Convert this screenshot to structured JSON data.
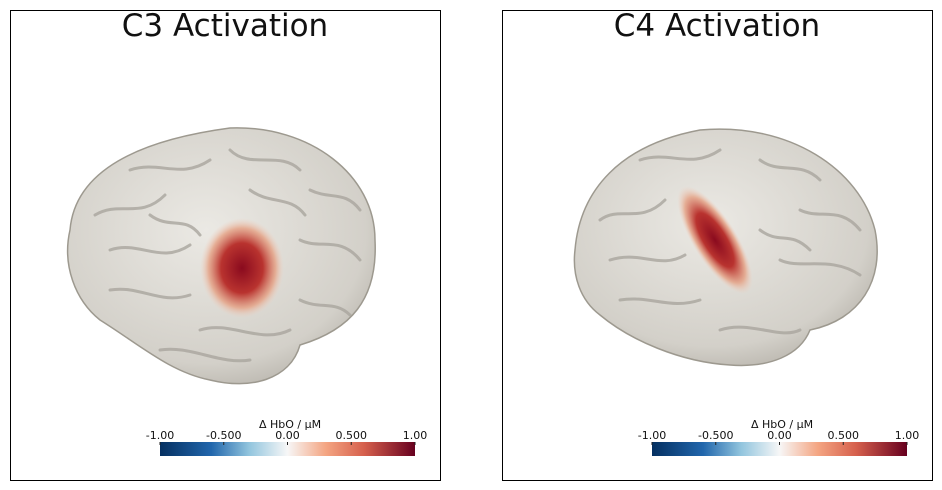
{
  "panels": [
    {
      "title": "C3 Activation",
      "colorbar": {
        "label": "Δ HbO / μM",
        "range": [
          -1,
          1
        ],
        "ticks": [
          {
            "value": -1,
            "label": "-1.00"
          },
          {
            "value": -0.5,
            "label": "-0.500"
          },
          {
            "value": 0,
            "label": "0.00"
          },
          {
            "value": 0.5,
            "label": "0.500"
          },
          {
            "value": 1,
            "label": "1.00"
          }
        ]
      }
    },
    {
      "title": "C4 Activation",
      "colorbar": {
        "label": "Δ HbO / μM",
        "range": [
          -1,
          1
        ],
        "ticks": [
          {
            "value": -1,
            "label": "-1.00"
          },
          {
            "value": -0.5,
            "label": "-0.500"
          },
          {
            "value": 0,
            "label": "0.00"
          },
          {
            "value": 0.5,
            "label": "0.500"
          },
          {
            "value": 1,
            "label": "1.00"
          }
        ]
      }
    }
  ]
}
